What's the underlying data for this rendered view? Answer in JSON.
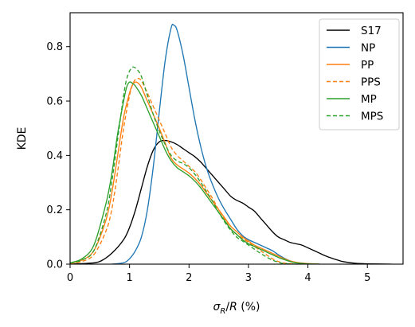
{
  "chart_data": {
    "type": "line",
    "title": "",
    "xlabel": "σ_R/R (%)",
    "ylabel": "KDE",
    "xlim": [
      0,
      5.6
    ],
    "ylim": [
      0,
      0.925
    ],
    "xticks": [
      0,
      1,
      2,
      3,
      4,
      5
    ],
    "yticks": [
      0.0,
      0.2,
      0.4,
      0.6,
      0.8
    ],
    "xtick_labels": [
      "0",
      "1",
      "2",
      "3",
      "4",
      "5"
    ],
    "ytick_labels": [
      "0.0",
      "0.2",
      "0.4",
      "0.6",
      "0.8"
    ],
    "grid": false,
    "legend_position": "top-right",
    "series": [
      {
        "name": "S17",
        "color": "#000000",
        "dash": "solid",
        "points": [
          [
            0,
            0
          ],
          [
            0.3,
            0.003
          ],
          [
            0.5,
            0.01
          ],
          [
            0.7,
            0.04
          ],
          [
            0.9,
            0.09
          ],
          [
            1.0,
            0.135
          ],
          [
            1.1,
            0.2
          ],
          [
            1.2,
            0.28
          ],
          [
            1.3,
            0.36
          ],
          [
            1.4,
            0.42
          ],
          [
            1.5,
            0.45
          ],
          [
            1.6,
            0.455
          ],
          [
            1.7,
            0.45
          ],
          [
            1.8,
            0.44
          ],
          [
            1.9,
            0.425
          ],
          [
            2.0,
            0.41
          ],
          [
            2.1,
            0.395
          ],
          [
            2.2,
            0.375
          ],
          [
            2.3,
            0.35
          ],
          [
            2.4,
            0.325
          ],
          [
            2.5,
            0.3
          ],
          [
            2.6,
            0.275
          ],
          [
            2.7,
            0.25
          ],
          [
            2.8,
            0.235
          ],
          [
            2.9,
            0.225
          ],
          [
            3.0,
            0.21
          ],
          [
            3.1,
            0.195
          ],
          [
            3.2,
            0.17
          ],
          [
            3.3,
            0.145
          ],
          [
            3.4,
            0.12
          ],
          [
            3.5,
            0.1
          ],
          [
            3.6,
            0.09
          ],
          [
            3.7,
            0.08
          ],
          [
            3.8,
            0.075
          ],
          [
            3.9,
            0.07
          ],
          [
            4.0,
            0.06
          ],
          [
            4.1,
            0.05
          ],
          [
            4.2,
            0.04
          ],
          [
            4.3,
            0.03
          ],
          [
            4.4,
            0.022
          ],
          [
            4.5,
            0.015
          ],
          [
            4.6,
            0.009
          ],
          [
            4.8,
            0.003
          ],
          [
            5.0,
            0.001
          ],
          [
            5.4,
            0
          ]
        ]
      },
      {
        "name": "NP",
        "color": "#1f77b4",
        "dash": "solid",
        "points": [
          [
            0.7,
            0
          ],
          [
            0.9,
            0.005
          ],
          [
            1.0,
            0.02
          ],
          [
            1.1,
            0.05
          ],
          [
            1.2,
            0.1
          ],
          [
            1.3,
            0.2
          ],
          [
            1.4,
            0.36
          ],
          [
            1.5,
            0.56
          ],
          [
            1.6,
            0.75
          ],
          [
            1.7,
            0.87
          ],
          [
            1.75,
            0.878
          ],
          [
            1.8,
            0.86
          ],
          [
            1.9,
            0.77
          ],
          [
            2.0,
            0.65
          ],
          [
            2.1,
            0.53
          ],
          [
            2.2,
            0.43
          ],
          [
            2.3,
            0.35
          ],
          [
            2.4,
            0.29
          ],
          [
            2.5,
            0.24
          ],
          [
            2.6,
            0.2
          ],
          [
            2.7,
            0.165
          ],
          [
            2.8,
            0.13
          ],
          [
            2.9,
            0.105
          ],
          [
            3.0,
            0.09
          ],
          [
            3.1,
            0.08
          ],
          [
            3.2,
            0.07
          ],
          [
            3.3,
            0.06
          ],
          [
            3.4,
            0.05
          ],
          [
            3.5,
            0.035
          ],
          [
            3.6,
            0.022
          ],
          [
            3.7,
            0.012
          ],
          [
            3.8,
            0.005
          ],
          [
            4.0,
            0.001
          ],
          [
            4.2,
            0
          ]
        ]
      },
      {
        "name": "PP",
        "color": "#ff7f0e",
        "dash": "solid",
        "points": [
          [
            0,
            0.003
          ],
          [
            0.2,
            0.015
          ],
          [
            0.4,
            0.05
          ],
          [
            0.6,
            0.16
          ],
          [
            0.7,
            0.26
          ],
          [
            0.8,
            0.4
          ],
          [
            0.9,
            0.54
          ],
          [
            1.0,
            0.63
          ],
          [
            1.05,
            0.66
          ],
          [
            1.1,
            0.67
          ],
          [
            1.15,
            0.665
          ],
          [
            1.2,
            0.65
          ],
          [
            1.3,
            0.6
          ],
          [
            1.4,
            0.55
          ],
          [
            1.5,
            0.5
          ],
          [
            1.6,
            0.445
          ],
          [
            1.7,
            0.39
          ],
          [
            1.8,
            0.365
          ],
          [
            1.9,
            0.35
          ],
          [
            2.0,
            0.335
          ],
          [
            2.1,
            0.315
          ],
          [
            2.2,
            0.29
          ],
          [
            2.3,
            0.26
          ],
          [
            2.4,
            0.23
          ],
          [
            2.5,
            0.2
          ],
          [
            2.6,
            0.17
          ],
          [
            2.7,
            0.14
          ],
          [
            2.8,
            0.12
          ],
          [
            2.9,
            0.1
          ],
          [
            3.0,
            0.085
          ],
          [
            3.1,
            0.07
          ],
          [
            3.2,
            0.06
          ],
          [
            3.3,
            0.05
          ],
          [
            3.4,
            0.04
          ],
          [
            3.5,
            0.03
          ],
          [
            3.6,
            0.02
          ],
          [
            3.7,
            0.012
          ],
          [
            3.8,
            0.007
          ],
          [
            4.0,
            0.002
          ],
          [
            4.2,
            0
          ]
        ]
      },
      {
        "name": "PPS",
        "color": "#ff7f0e",
        "dash": "dashed",
        "points": [
          [
            0,
            0.002
          ],
          [
            0.2,
            0.01
          ],
          [
            0.4,
            0.035
          ],
          [
            0.6,
            0.12
          ],
          [
            0.7,
            0.2
          ],
          [
            0.8,
            0.34
          ],
          [
            0.9,
            0.5
          ],
          [
            1.0,
            0.62
          ],
          [
            1.05,
            0.66
          ],
          [
            1.1,
            0.68
          ],
          [
            1.15,
            0.683
          ],
          [
            1.2,
            0.675
          ],
          [
            1.3,
            0.63
          ],
          [
            1.4,
            0.58
          ],
          [
            1.5,
            0.53
          ],
          [
            1.6,
            0.48
          ],
          [
            1.7,
            0.43
          ],
          [
            1.8,
            0.4
          ],
          [
            1.9,
            0.38
          ],
          [
            2.0,
            0.36
          ],
          [
            2.1,
            0.34
          ],
          [
            2.2,
            0.31
          ],
          [
            2.3,
            0.275
          ],
          [
            2.4,
            0.24
          ],
          [
            2.5,
            0.2
          ],
          [
            2.6,
            0.165
          ],
          [
            2.7,
            0.13
          ],
          [
            2.8,
            0.11
          ],
          [
            2.9,
            0.095
          ],
          [
            3.0,
            0.08
          ],
          [
            3.1,
            0.065
          ],
          [
            3.2,
            0.05
          ],
          [
            3.3,
            0.035
          ],
          [
            3.4,
            0.02
          ],
          [
            3.5,
            0.01
          ],
          [
            3.6,
            0.004
          ],
          [
            3.8,
            0
          ]
        ]
      },
      {
        "name": "MP",
        "color": "#2ca02c",
        "dash": "solid",
        "points": [
          [
            0,
            0.005
          ],
          [
            0.2,
            0.02
          ],
          [
            0.4,
            0.07
          ],
          [
            0.6,
            0.22
          ],
          [
            0.7,
            0.33
          ],
          [
            0.8,
            0.48
          ],
          [
            0.9,
            0.6
          ],
          [
            0.95,
            0.65
          ],
          [
            1.0,
            0.67
          ],
          [
            1.05,
            0.665
          ],
          [
            1.1,
            0.655
          ],
          [
            1.2,
            0.62
          ],
          [
            1.3,
            0.57
          ],
          [
            1.4,
            0.52
          ],
          [
            1.5,
            0.47
          ],
          [
            1.6,
            0.42
          ],
          [
            1.7,
            0.38
          ],
          [
            1.8,
            0.355
          ],
          [
            1.9,
            0.34
          ],
          [
            2.0,
            0.325
          ],
          [
            2.1,
            0.305
          ],
          [
            2.2,
            0.28
          ],
          [
            2.3,
            0.25
          ],
          [
            2.4,
            0.22
          ],
          [
            2.5,
            0.19
          ],
          [
            2.6,
            0.16
          ],
          [
            2.7,
            0.13
          ],
          [
            2.8,
            0.11
          ],
          [
            2.9,
            0.09
          ],
          [
            3.0,
            0.075
          ],
          [
            3.1,
            0.065
          ],
          [
            3.2,
            0.055
          ],
          [
            3.3,
            0.045
          ],
          [
            3.4,
            0.035
          ],
          [
            3.5,
            0.025
          ],
          [
            3.6,
            0.017
          ],
          [
            3.7,
            0.01
          ],
          [
            3.8,
            0.005
          ],
          [
            4.0,
            0.001
          ],
          [
            4.2,
            0
          ]
        ]
      },
      {
        "name": "MPS",
        "color": "#2ca02c",
        "dash": "dashed",
        "points": [
          [
            0,
            0.004
          ],
          [
            0.2,
            0.015
          ],
          [
            0.4,
            0.05
          ],
          [
            0.6,
            0.18
          ],
          [
            0.7,
            0.3
          ],
          [
            0.8,
            0.46
          ],
          [
            0.9,
            0.62
          ],
          [
            0.95,
            0.68
          ],
          [
            1.0,
            0.71
          ],
          [
            1.05,
            0.725
          ],
          [
            1.1,
            0.722
          ],
          [
            1.15,
            0.71
          ],
          [
            1.2,
            0.69
          ],
          [
            1.3,
            0.62
          ],
          [
            1.4,
            0.55
          ],
          [
            1.5,
            0.49
          ],
          [
            1.6,
            0.44
          ],
          [
            1.7,
            0.4
          ],
          [
            1.8,
            0.38
          ],
          [
            1.9,
            0.37
          ],
          [
            2.0,
            0.355
          ],
          [
            2.1,
            0.33
          ],
          [
            2.2,
            0.3
          ],
          [
            2.3,
            0.265
          ],
          [
            2.4,
            0.23
          ],
          [
            2.5,
            0.19
          ],
          [
            2.6,
            0.155
          ],
          [
            2.7,
            0.125
          ],
          [
            2.8,
            0.1
          ],
          [
            2.9,
            0.085
          ],
          [
            3.0,
            0.07
          ],
          [
            3.1,
            0.055
          ],
          [
            3.2,
            0.04
          ],
          [
            3.3,
            0.027
          ],
          [
            3.4,
            0.015
          ],
          [
            3.5,
            0.007
          ],
          [
            3.6,
            0.002
          ],
          [
            3.8,
            0
          ]
        ]
      }
    ]
  }
}
